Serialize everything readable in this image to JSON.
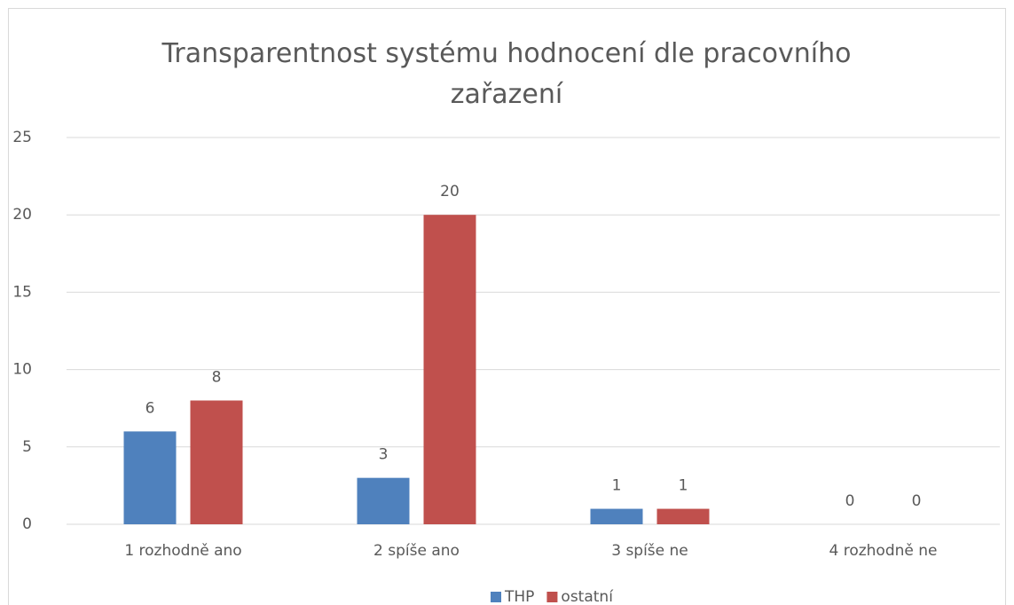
{
  "chart_data": {
    "type": "bar",
    "title": "Transparentnost systému hodnocení dle pracovního zařazení",
    "categories": [
      "1 rozhodně ano",
      "2 spíše ano",
      "3 spíše ne",
      "4 rozhodně ne"
    ],
    "series": [
      {
        "name": "THP",
        "color": "#4f81bd",
        "values": [
          6,
          3,
          1,
          0
        ]
      },
      {
        "name": "ostatní",
        "color": "#c0504d",
        "values": [
          8,
          20,
          1,
          0
        ]
      }
    ],
    "ylim": [
      0,
      25
    ],
    "yticks": [
      0,
      5,
      10,
      15,
      20,
      25
    ],
    "grid": true,
    "legend": "bottom"
  }
}
